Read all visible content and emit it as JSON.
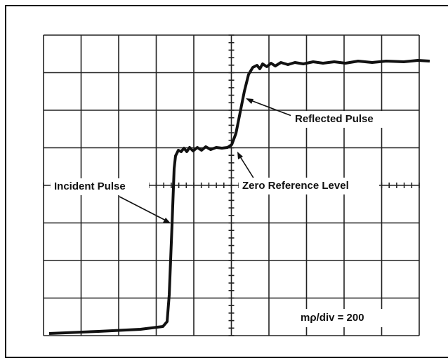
{
  "labels": {
    "reflected": "Reflected Pulse",
    "zero": "Zero Reference Level",
    "incident": "Incident Pulse",
    "scale": "mρ/div = 200"
  }
}
